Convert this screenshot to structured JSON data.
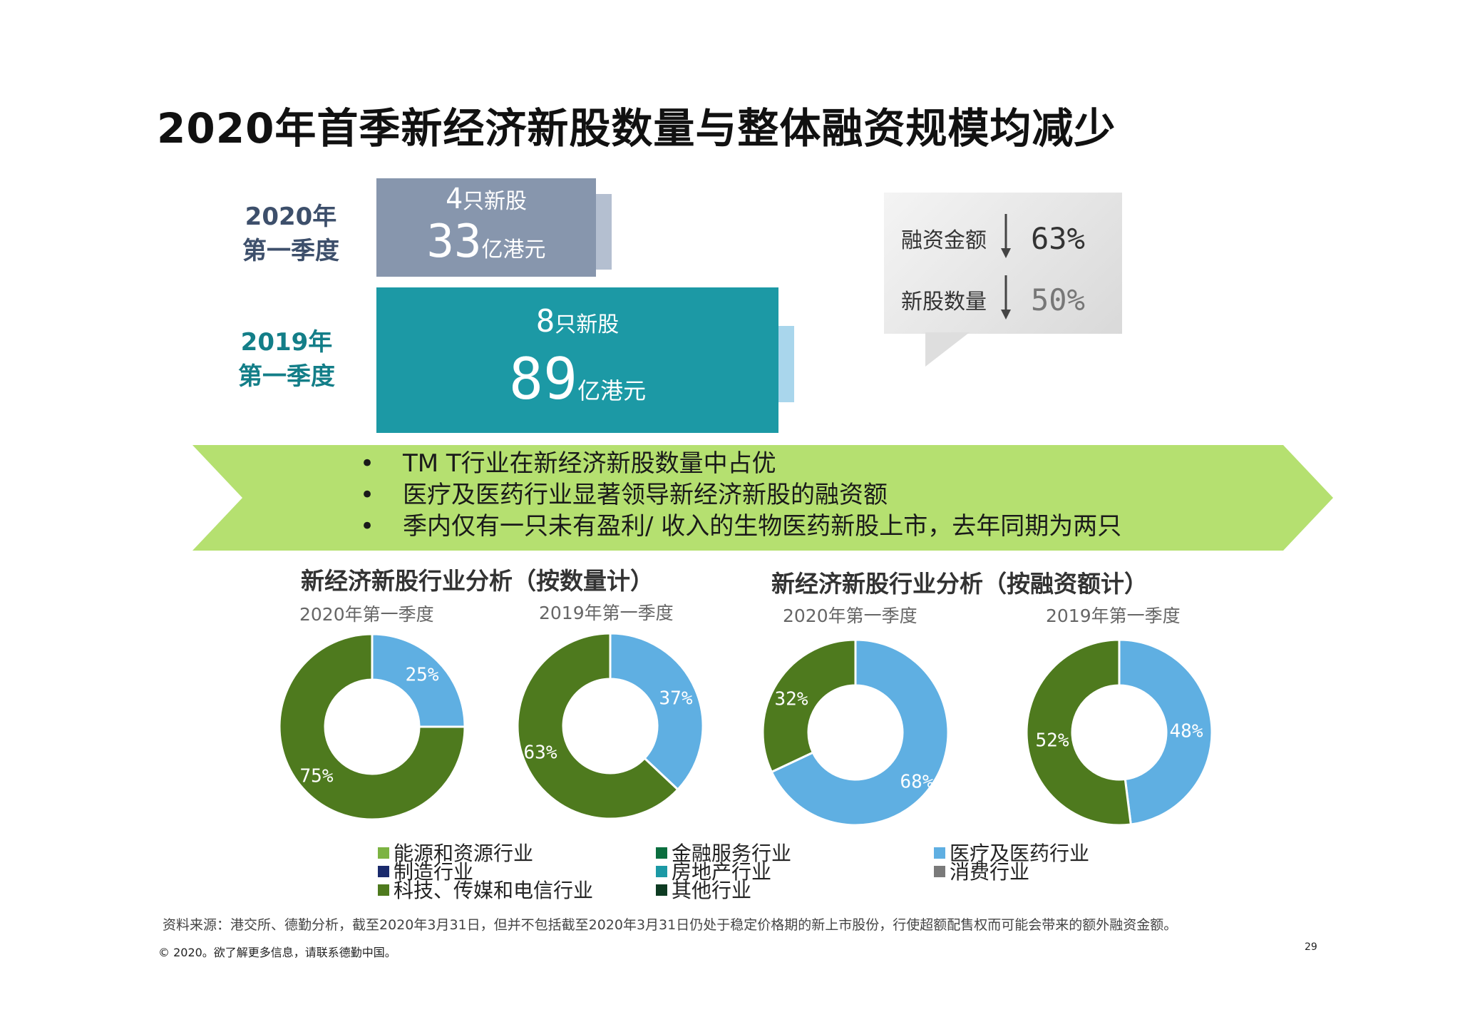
{
  "title": "2020年首季新经济新股数量与整体融资规模均减少",
  "comparison": {
    "q2020": {
      "label_line1": "2020年",
      "label_line2": "第一季度",
      "ipo_count": "4",
      "ipo_unit": "只新股",
      "funds": "33",
      "funds_unit": "亿港元",
      "color": "#8796ad"
    },
    "q2019": {
      "label_line1": "2019年",
      "label_line2": "第一季度",
      "ipo_count": "8",
      "ipo_unit": "只新股",
      "funds": "89",
      "funds_unit": "亿港元",
      "color": "#1c99a5"
    }
  },
  "callout": {
    "row1_label": "融资金额",
    "row1_value": "63%",
    "row2_label": "新股数量",
    "row2_value": "50%",
    "arrow_icon": "down-arrow-icon"
  },
  "bullets": [
    "TM T行业在新经济新股数量中占优",
    "医疗及医药行业显著领导新经济新股的融资额",
    "季内仅有一只未有盈利/ 收入的生物医药新股上市，去年同期为两只"
  ],
  "section_titles": {
    "by_count": "新经济新股行业分析（按数量计）",
    "by_funds": "新经济新股行业分析（按融资额计）"
  },
  "colors": {
    "tmt": "#4e7a1e",
    "healthcare": "#5fafe2",
    "banner": "#b5e070"
  },
  "chart_data": [
    {
      "type": "pie",
      "title": "2020年第一季度",
      "categories": [
        "医疗及医药行业",
        "科技、传媒和电信行业"
      ],
      "values": [
        25,
        75
      ],
      "labels": [
        "25%",
        "75%"
      ]
    },
    {
      "type": "pie",
      "title": "2019年第一季度",
      "categories": [
        "医疗及医药行业",
        "科技、传媒和电信行业"
      ],
      "values": [
        37,
        63
      ],
      "labels": [
        "37%",
        "63%"
      ]
    },
    {
      "type": "pie",
      "title": "2020年第一季度",
      "categories": [
        "医疗及医药行业",
        "科技、传媒和电信行业"
      ],
      "values": [
        68,
        32
      ],
      "labels": [
        "68%",
        "32%"
      ]
    },
    {
      "type": "pie",
      "title": "2019年第一季度",
      "categories": [
        "医疗及医药行业",
        "科技、传媒和电信行业"
      ],
      "values": [
        48,
        52
      ],
      "labels": [
        "48%",
        "52%"
      ]
    }
  ],
  "legend": [
    {
      "label": "能源和资源行业",
      "color": "#7cb342"
    },
    {
      "label": "制造行业",
      "color": "#1a2a6c"
    },
    {
      "label": "科技、传媒和电信行业",
      "color": "#4e7a1e"
    },
    {
      "label": "金融服务行业",
      "color": "#0b6e3f"
    },
    {
      "label": "房地产行业",
      "color": "#1c99a5"
    },
    {
      "label": "其他行业",
      "color": "#0d3b22"
    },
    {
      "label": "医疗及医药行业",
      "color": "#5fafe2"
    },
    {
      "label": "消费行业",
      "color": "#7a7a7a"
    }
  ],
  "footer": {
    "source": "资料来源：港交所、德勤分析，截至2020年3月31日，但并不包括截至2020年3月31日仍处于稳定价格期的新上市股份，行使超额配售权而可能会带来的额外融资金额。",
    "copyright": "© 2020。欲了解更多信息，请联系德勤中国。",
    "page_number": "29"
  }
}
